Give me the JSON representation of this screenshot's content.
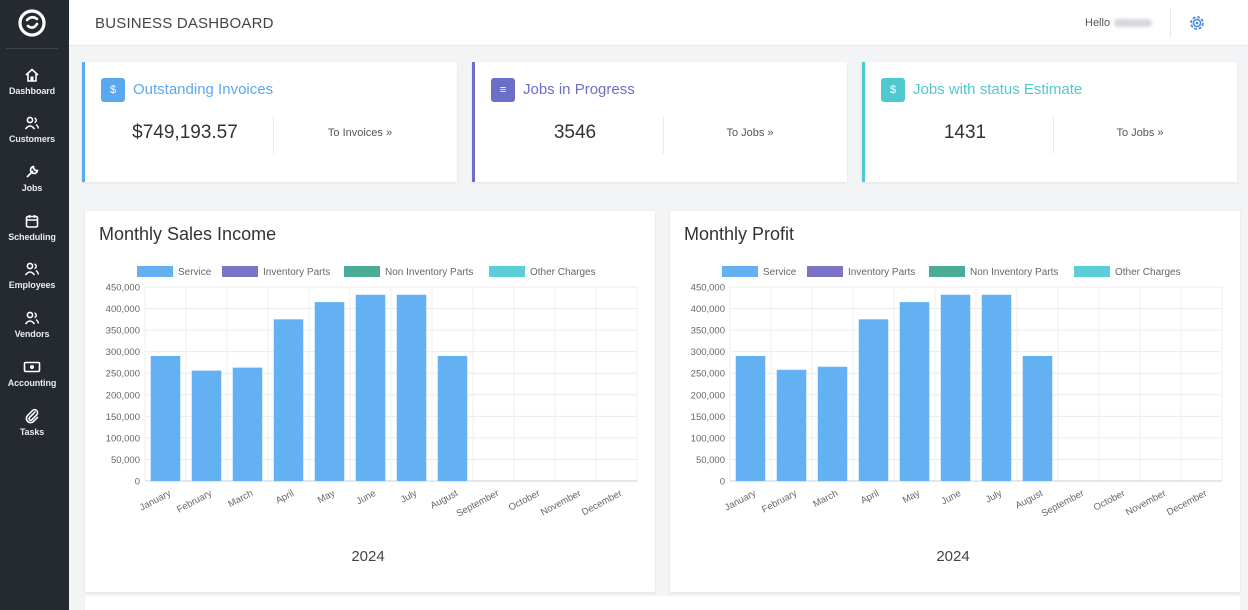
{
  "header": {
    "title": "BUSINESS DASHBOARD",
    "greeting": "Hello"
  },
  "sidebar": {
    "items": [
      {
        "label": "Dashboard",
        "icon": "home-icon"
      },
      {
        "label": "Customers",
        "icon": "users-icon"
      },
      {
        "label": "Jobs",
        "icon": "wrench-icon"
      },
      {
        "label": "Scheduling",
        "icon": "calendar-icon"
      },
      {
        "label": "Employees",
        "icon": "users-icon"
      },
      {
        "label": "Vendors",
        "icon": "users-icon"
      },
      {
        "label": "Accounting",
        "icon": "money-icon"
      },
      {
        "label": "Tasks",
        "icon": "paperclip-icon"
      }
    ]
  },
  "cards": [
    {
      "icon_text": "$",
      "title": "Outstanding Invoices",
      "value": "$749,193.57",
      "link": "To Invoices »",
      "color": "#5aa9f0"
    },
    {
      "icon_text": "≡",
      "title": "Jobs in Progress",
      "value": "3546",
      "link": "To Jobs »",
      "color": "#6b6fc7"
    },
    {
      "icon_text": "$",
      "title": "Jobs with status Estimate",
      "value": "1431",
      "link": "To Jobs »",
      "color": "#4fc8cf"
    }
  ],
  "colors": {
    "service": "#63b1f2",
    "inventory_parts": "#7b74c9",
    "non_inventory_parts": "#4aab98",
    "other_charges": "#5ccfd6"
  },
  "chart_data": [
    {
      "type": "bar",
      "title": "Monthly Sales Income",
      "xlabel": "2024",
      "ylabel": "",
      "categories": [
        "January",
        "February",
        "March",
        "April",
        "May",
        "June",
        "July",
        "August",
        "September",
        "October",
        "November",
        "December"
      ],
      "series": [
        {
          "name": "Service",
          "values": [
            290000,
            256000,
            263000,
            375000,
            415000,
            432000,
            432000,
            290000,
            0,
            0,
            0,
            0
          ]
        },
        {
          "name": "Inventory Parts",
          "values": [
            0,
            0,
            0,
            0,
            0,
            0,
            0,
            0,
            0,
            0,
            0,
            0
          ]
        },
        {
          "name": "Non Inventory Parts",
          "values": [
            0,
            0,
            0,
            0,
            0,
            0,
            0,
            0,
            0,
            0,
            0,
            0
          ]
        },
        {
          "name": "Other Charges",
          "values": [
            0,
            0,
            0,
            0,
            0,
            0,
            0,
            0,
            0,
            0,
            0,
            0
          ]
        }
      ],
      "yticks": [
        "0",
        "50,000",
        "100,000",
        "150,000",
        "200,000",
        "250,000",
        "300,000",
        "350,000",
        "400,000",
        "450,000"
      ],
      "ylim": [
        0,
        450000
      ],
      "stacked": true,
      "grid": true,
      "legend": "top"
    },
    {
      "type": "bar",
      "title": "Monthly Profit",
      "xlabel": "2024",
      "ylabel": "",
      "categories": [
        "January",
        "February",
        "March",
        "April",
        "May",
        "June",
        "July",
        "August",
        "September",
        "October",
        "November",
        "December"
      ],
      "series": [
        {
          "name": "Service",
          "values": [
            290000,
            258000,
            265000,
            375000,
            415000,
            432000,
            432000,
            290000,
            0,
            0,
            0,
            0
          ]
        },
        {
          "name": "Inventory Parts",
          "values": [
            0,
            0,
            0,
            0,
            0,
            0,
            0,
            0,
            0,
            0,
            0,
            0
          ]
        },
        {
          "name": "Non Inventory Parts",
          "values": [
            0,
            0,
            0,
            0,
            0,
            0,
            0,
            0,
            0,
            0,
            0,
            0
          ]
        },
        {
          "name": "Other Charges",
          "values": [
            0,
            0,
            0,
            0,
            0,
            0,
            0,
            0,
            0,
            0,
            0,
            0
          ]
        }
      ],
      "yticks": [
        "0",
        "50,000",
        "100,000",
        "150,000",
        "200,000",
        "250,000",
        "300,000",
        "350,000",
        "400,000",
        "450,000"
      ],
      "ylim": [
        0,
        450000
      ],
      "stacked": true,
      "grid": true,
      "legend": "top"
    }
  ]
}
